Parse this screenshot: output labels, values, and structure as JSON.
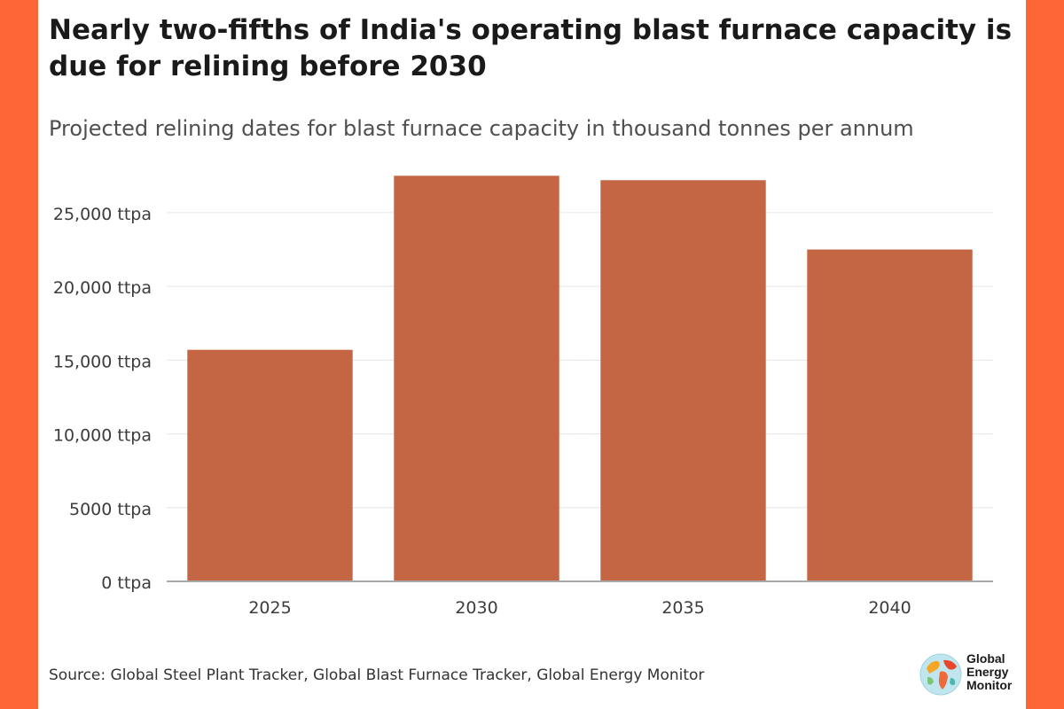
{
  "title": "Nearly two-fifths of India's operating blast furnace capacity is due for relining before 2030",
  "subtitle": "Projected relining dates for blast furnace capacity in thousand tonnes per annum",
  "source": "Source: Global Steel Plant Tracker, Global Blast Furnace Tracker, Global Energy Monitor",
  "logo": {
    "line1": "Global",
    "line2": "Energy",
    "line3": "Monitor"
  },
  "colors": {
    "background": "#ff6636",
    "bar": "#c46644",
    "grid": "#e6e6e6",
    "axis": "#aaaaaa"
  },
  "chart_data": {
    "type": "bar",
    "title": "Nearly two-fifths of India's operating blast furnace capacity is due for relining before 2030",
    "subtitle": "Projected relining dates for blast furnace capacity in thousand tonnes per annum",
    "xlabel": "",
    "ylabel": "",
    "categories": [
      "2025",
      "2030",
      "2035",
      "2040"
    ],
    "values": [
      15700,
      27500,
      27200,
      22500
    ],
    "ylim": [
      0,
      28000
    ],
    "yticks": [
      0,
      5000,
      10000,
      15000,
      20000,
      25000
    ],
    "ytick_labels": [
      "0 ttpa",
      "5000 ttpa",
      "10,000 ttpa",
      "15,000 ttpa",
      "20,000 ttpa",
      "25,000 ttpa"
    ],
    "grid": true,
    "legend": "none"
  }
}
